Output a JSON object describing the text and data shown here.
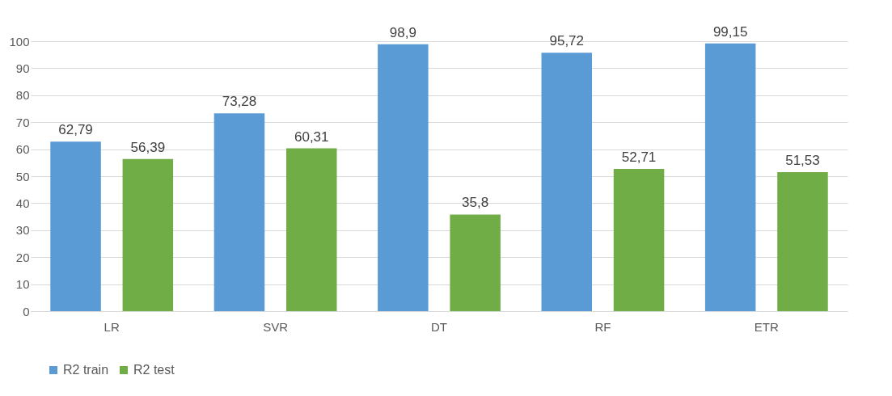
{
  "chart_data": {
    "type": "bar",
    "categories": [
      "LR",
      "SVR",
      "DT",
      "RF",
      "ETR"
    ],
    "series": [
      {
        "name": "R2 train",
        "color": "#5b9bd5",
        "values": [
          62.79,
          73.28,
          98.9,
          95.72,
          99.15
        ],
        "value_labels": [
          "62,79",
          "73,28",
          "98,9",
          "95,72",
          "99,15"
        ]
      },
      {
        "name": "R2 test",
        "color": "#70ad47",
        "values": [
          56.39,
          60.31,
          35.8,
          52.71,
          51.53
        ],
        "value_labels": [
          "56,39",
          "60,31",
          "35,8",
          "52,71",
          "51,53"
        ]
      }
    ],
    "ylim": [
      0,
      100
    ],
    "yticks": [
      0,
      10,
      20,
      30,
      40,
      50,
      60,
      70,
      80,
      90,
      100
    ],
    "grid": "y",
    "legend": "bottom"
  }
}
